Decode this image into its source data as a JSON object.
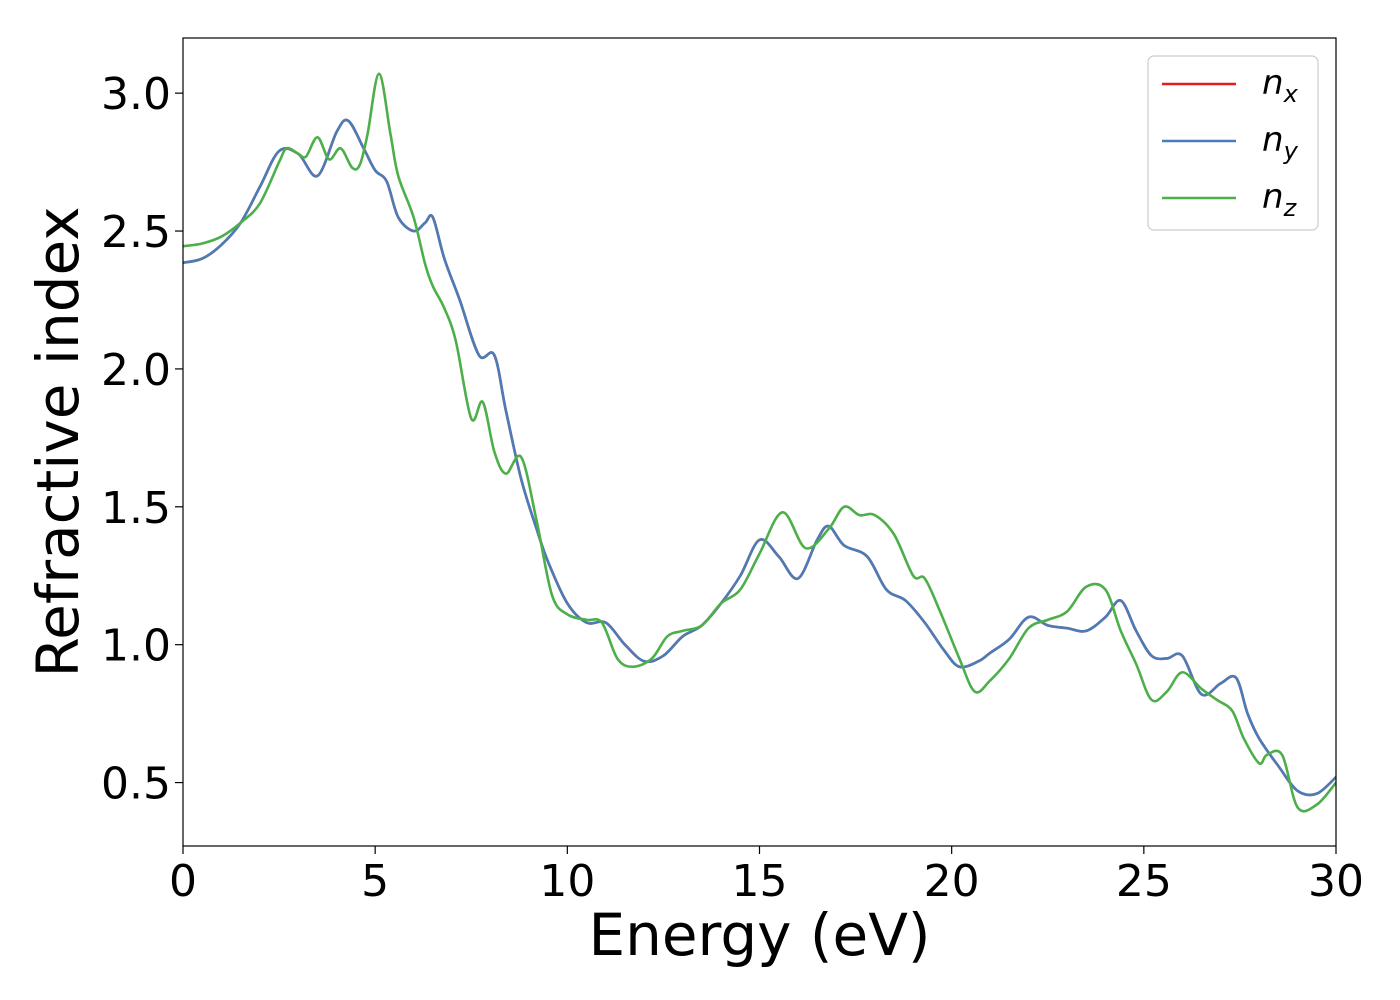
{
  "chart_data": {
    "type": "line",
    "xlabel": "Energy (eV)",
    "ylabel": "Refractive index",
    "xlim": [
      0,
      30
    ],
    "ylim": [
      0.27,
      3.2
    ],
    "xticks": [
      0,
      5,
      10,
      15,
      20,
      25,
      30
    ],
    "xtick_labels": [
      "0",
      "5",
      "10",
      "15",
      "20",
      "25",
      "30"
    ],
    "yticks": [
      0.5,
      1.0,
      1.5,
      2.0,
      2.5,
      3.0
    ],
    "ytick_labels": [
      "0.5",
      "1.0",
      "1.5",
      "2.0",
      "2.5",
      "3.0"
    ],
    "grid": false,
    "legend_position": "top-right",
    "series": [
      {
        "name": "n_x",
        "legend_base": "n",
        "legend_sub": "x",
        "color": "#e41a1c",
        "x": [
          0,
          0.5,
          1,
          1.5,
          2,
          2.5,
          3,
          3.5,
          4,
          4.3,
          4.7,
          5,
          5.3,
          5.6,
          6,
          6.3,
          6.5,
          6.8,
          7.2,
          7.7,
          8.1,
          8.4,
          8.8,
          9.2,
          9.5,
          10,
          10.5,
          11,
          11.5,
          12,
          12.5,
          13,
          13.5,
          14,
          14.5,
          15,
          15.5,
          16,
          16.5,
          16.8,
          17.2,
          17.8,
          18.3,
          18.8,
          19.3,
          19.8,
          20.2,
          20.7,
          21,
          21.5,
          22,
          22.5,
          23,
          23.5,
          24,
          24.4,
          24.8,
          25.2,
          25.6,
          26,
          26.5,
          27,
          27.4,
          27.7,
          28,
          28.5,
          29,
          29.5,
          30
        ],
        "y": [
          2.385,
          2.4,
          2.45,
          2.53,
          2.66,
          2.79,
          2.78,
          2.7,
          2.86,
          2.9,
          2.8,
          2.72,
          2.68,
          2.55,
          2.5,
          2.53,
          2.55,
          2.4,
          2.25,
          2.05,
          2.05,
          1.85,
          1.6,
          1.42,
          1.3,
          1.15,
          1.08,
          1.08,
          1.0,
          0.94,
          0.96,
          1.03,
          1.07,
          1.15,
          1.25,
          1.38,
          1.32,
          1.24,
          1.38,
          1.43,
          1.36,
          1.32,
          1.2,
          1.16,
          1.08,
          0.98,
          0.92,
          0.94,
          0.97,
          1.02,
          1.1,
          1.07,
          1.06,
          1.05,
          1.1,
          1.16,
          1.05,
          0.96,
          0.95,
          0.96,
          0.82,
          0.86,
          0.88,
          0.75,
          0.66,
          0.56,
          0.47,
          0.46,
          0.52
        ]
      },
      {
        "name": "n_y",
        "legend_base": "n",
        "legend_sub": "y",
        "color": "#4a7db8",
        "x": [
          0,
          0.5,
          1,
          1.5,
          2,
          2.5,
          3,
          3.5,
          4,
          4.3,
          4.7,
          5,
          5.3,
          5.6,
          6,
          6.3,
          6.5,
          6.8,
          7.2,
          7.7,
          8.1,
          8.4,
          8.8,
          9.2,
          9.5,
          10,
          10.5,
          11,
          11.5,
          12,
          12.5,
          13,
          13.5,
          14,
          14.5,
          15,
          15.5,
          16,
          16.5,
          16.8,
          17.2,
          17.8,
          18.3,
          18.8,
          19.3,
          19.8,
          20.2,
          20.7,
          21,
          21.5,
          22,
          22.5,
          23,
          23.5,
          24,
          24.4,
          24.8,
          25.2,
          25.6,
          26,
          26.5,
          27,
          27.4,
          27.7,
          28,
          28.5,
          29,
          29.5,
          30
        ],
        "y": [
          2.385,
          2.4,
          2.45,
          2.53,
          2.66,
          2.79,
          2.78,
          2.7,
          2.86,
          2.9,
          2.8,
          2.72,
          2.68,
          2.55,
          2.5,
          2.53,
          2.55,
          2.4,
          2.25,
          2.05,
          2.05,
          1.85,
          1.6,
          1.42,
          1.3,
          1.15,
          1.08,
          1.08,
          1.0,
          0.94,
          0.96,
          1.03,
          1.07,
          1.15,
          1.25,
          1.38,
          1.32,
          1.24,
          1.38,
          1.43,
          1.36,
          1.32,
          1.2,
          1.16,
          1.08,
          0.98,
          0.92,
          0.94,
          0.97,
          1.02,
          1.1,
          1.07,
          1.06,
          1.05,
          1.1,
          1.16,
          1.05,
          0.96,
          0.95,
          0.96,
          0.82,
          0.86,
          0.88,
          0.75,
          0.66,
          0.56,
          0.47,
          0.46,
          0.52
        ]
      },
      {
        "name": "n_z",
        "legend_base": "n",
        "legend_sub": "z",
        "color": "#4daf4a",
        "x": [
          0,
          0.5,
          1,
          1.5,
          2,
          2.5,
          2.7,
          3,
          3.2,
          3.5,
          3.8,
          4.1,
          4.4,
          4.6,
          4.8,
          5.1,
          5.4,
          5.6,
          6,
          6.3,
          6.5,
          6.8,
          7.1,
          7.5,
          7.8,
          8.1,
          8.4,
          8.8,
          9.2,
          9.6,
          10,
          10.5,
          10.9,
          11.3,
          11.7,
          12.2,
          12.6,
          13,
          13.5,
          14,
          14.5,
          15,
          15.6,
          16.2,
          16.8,
          17.2,
          17.6,
          18,
          18.5,
          19,
          19.3,
          19.7,
          20.2,
          20.6,
          21,
          21.5,
          22,
          22.5,
          23,
          23.5,
          24,
          24.4,
          24.8,
          25.2,
          25.6,
          26,
          26.5,
          26.9,
          27.3,
          27.6,
          28,
          28.2,
          28.6,
          29,
          29.5,
          30
        ],
        "y": [
          2.445,
          2.455,
          2.48,
          2.53,
          2.6,
          2.75,
          2.8,
          2.78,
          2.77,
          2.84,
          2.76,
          2.8,
          2.73,
          2.74,
          2.85,
          3.07,
          2.85,
          2.7,
          2.55,
          2.38,
          2.3,
          2.22,
          2.1,
          1.82,
          1.88,
          1.7,
          1.62,
          1.68,
          1.45,
          1.18,
          1.11,
          1.09,
          1.08,
          0.95,
          0.92,
          0.95,
          1.03,
          1.05,
          1.07,
          1.15,
          1.2,
          1.33,
          1.48,
          1.35,
          1.42,
          1.5,
          1.47,
          1.47,
          1.4,
          1.25,
          1.24,
          1.12,
          0.95,
          0.83,
          0.87,
          0.95,
          1.06,
          1.09,
          1.12,
          1.21,
          1.2,
          1.05,
          0.93,
          0.8,
          0.83,
          0.9,
          0.84,
          0.8,
          0.76,
          0.66,
          0.57,
          0.6,
          0.6,
          0.41,
          0.42,
          0.5
        ]
      }
    ]
  }
}
